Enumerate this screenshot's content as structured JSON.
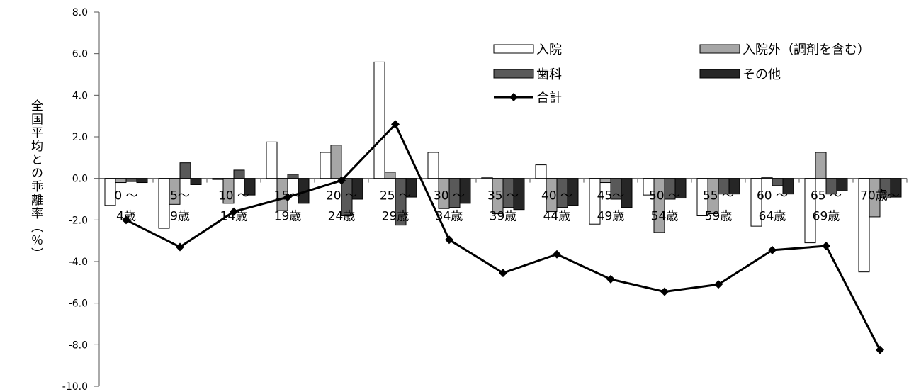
{
  "chart_data": {
    "type": "bar",
    "ylabel": "全国平均との乖離率（％）",
    "ylim": [
      -10,
      8
    ],
    "yticks": [
      "8.0",
      "6.0",
      "4.0",
      "2.0",
      "0.0",
      "-2.0",
      "-4.0",
      "-6.0",
      "-8.0",
      "-10.0"
    ],
    "categories": [
      [
        "0 ～",
        "4歳"
      ],
      [
        "5～",
        "9歳"
      ],
      [
        "10 ～",
        "14歳"
      ],
      [
        "15～",
        "19歳"
      ],
      [
        "20 ～",
        "24歳"
      ],
      [
        "25 ～",
        "29歳"
      ],
      [
        "30 ～",
        "34歳"
      ],
      [
        "35 ～",
        "39歳"
      ],
      [
        "40 ～",
        "44歳"
      ],
      [
        "45～",
        "49歳"
      ],
      [
        "50 ～",
        "54歳"
      ],
      [
        "55 ～",
        "59歳"
      ],
      [
        "60 ～",
        "64歳"
      ],
      [
        "65 ～",
        "69歳"
      ],
      [
        "70歳～",
        ""
      ]
    ],
    "series": [
      {
        "name": "入院",
        "kind": "bar",
        "color": "#ffffff",
        "values": [
          -1.3,
          -2.4,
          -0.05,
          1.75,
          1.25,
          5.6,
          1.25,
          0.05,
          0.65,
          -2.2,
          -0.8,
          -1.8,
          -2.3,
          -3.1,
          -4.5
        ]
      },
      {
        "name": "入院外（調剤を含む）",
        "kind": "bar",
        "color": "#a6a6a6",
        "values": [
          -0.2,
          -1.25,
          -1.2,
          -1.55,
          1.6,
          0.3,
          -1.45,
          -1.7,
          -1.6,
          -0.2,
          -2.6,
          -1.7,
          0.05,
          1.25,
          -1.85
        ]
      },
      {
        "name": "歯科",
        "kind": "bar",
        "color": "#595959",
        "values": [
          -0.15,
          0.75,
          0.4,
          0.2,
          -1.8,
          -2.25,
          -1.4,
          -1.4,
          -1.4,
          -1.0,
          -1.0,
          -0.75,
          -0.35,
          -0.75,
          -0.95
        ]
      },
      {
        "name": "その他",
        "kind": "bar",
        "color": "#262626",
        "values": [
          -0.2,
          -0.3,
          -0.8,
          -1.2,
          -1.0,
          -0.9,
          -1.2,
          -1.5,
          -1.3,
          -1.4,
          -0.95,
          -0.75,
          -0.75,
          -0.6,
          -0.9
        ]
      },
      {
        "name": "合計",
        "kind": "line",
        "color": "#000000",
        "values": [
          -2.0,
          -3.3,
          -1.6,
          -0.9,
          -0.1,
          2.6,
          -2.95,
          -4.55,
          -3.65,
          -4.85,
          -5.45,
          -5.1,
          -3.45,
          -3.25,
          -8.25
        ]
      }
    ],
    "legend_placement": "top-right",
    "grid": false
  }
}
